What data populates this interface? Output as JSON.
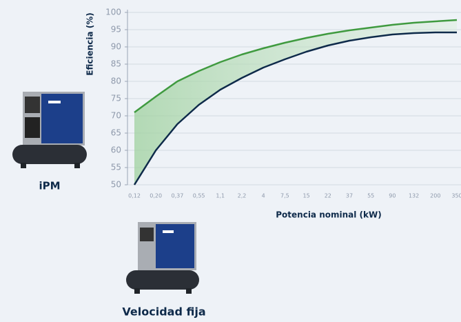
{
  "chart_data": {
    "type": "line",
    "y_label": "Eficiencia (%)",
    "x_label": "Potencia nominal (kW)",
    "categories": [
      "0,12",
      "0,20",
      "0,37",
      "0,55",
      "1,1",
      "2,2",
      "4",
      "7,5",
      "15",
      "22",
      "37",
      "55",
      "90",
      "132",
      "200",
      "350"
    ],
    "series": [
      {
        "name": "iPM",
        "color": "#3f9a3f",
        "values": [
          71,
          75.6,
          80,
          83,
          85.6,
          87.8,
          89.6,
          91.2,
          92.6,
          93.8,
          94.8,
          95.6,
          96.4,
          97,
          97.4,
          97.8
        ]
      },
      {
        "name": "Velocidad fija",
        "color": "#0e2a4a",
        "values": [
          50,
          60,
          67.6,
          73.2,
          77.6,
          81,
          84,
          86.4,
          88.6,
          90.4,
          91.8,
          92.8,
          93.6,
          94,
          94.2,
          94.2
        ]
      }
    ],
    "ylim": [
      50,
      100
    ],
    "yticks": [
      50,
      55,
      60,
      65,
      70,
      75,
      80,
      85,
      90,
      95,
      100
    ],
    "grid": true
  }
}
